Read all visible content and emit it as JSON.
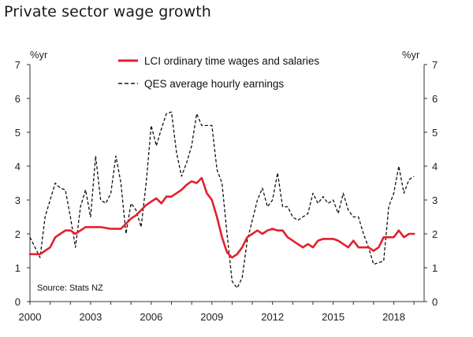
{
  "chart_data": {
    "type": "line",
    "title": "Private sector wage growth",
    "y_unit_left": "%yr",
    "y_unit_right": "%yr",
    "source": "Source: Stats NZ",
    "xlim": [
      2000,
      2019.5
    ],
    "ylim": [
      0,
      7
    ],
    "x_ticks": [
      2000,
      2003,
      2006,
      2009,
      2012,
      2015,
      2018
    ],
    "y_ticks": [
      0,
      1,
      2,
      3,
      4,
      5,
      6,
      7
    ],
    "legend_position": "top-center",
    "grid": false,
    "series": [
      {
        "name": "LCI ordinary time wages and salaries",
        "color": "#e3202d",
        "style": "solid",
        "x": [
          2000.0,
          2000.25,
          2000.5,
          2000.75,
          2001.0,
          2001.25,
          2001.5,
          2001.75,
          2002.0,
          2002.25,
          2002.5,
          2002.75,
          2003.0,
          2003.5,
          2004.0,
          2004.5,
          2004.75,
          2005.0,
          2005.25,
          2005.5,
          2005.75,
          2006.0,
          2006.25,
          2006.5,
          2006.75,
          2007.0,
          2007.25,
          2007.5,
          2007.75,
          2008.0,
          2008.25,
          2008.5,
          2008.75,
          2009.0,
          2009.25,
          2009.5,
          2009.75,
          2010.0,
          2010.25,
          2010.5,
          2010.75,
          2011.0,
          2011.25,
          2011.5,
          2011.75,
          2012.0,
          2012.25,
          2012.5,
          2012.75,
          2013.0,
          2013.25,
          2013.5,
          2013.75,
          2014.0,
          2014.25,
          2014.5,
          2014.75,
          2015.0,
          2015.25,
          2015.5,
          2015.75,
          2016.0,
          2016.25,
          2016.5,
          2016.75,
          2017.0,
          2017.25,
          2017.5,
          2017.75,
          2018.0,
          2018.25,
          2018.5,
          2018.75,
          2019.0
        ],
        "values": [
          1.4,
          1.4,
          1.4,
          1.5,
          1.6,
          1.9,
          2.0,
          2.1,
          2.1,
          2.0,
          2.1,
          2.2,
          2.2,
          2.2,
          2.15,
          2.15,
          2.3,
          2.45,
          2.55,
          2.7,
          2.85,
          2.95,
          3.05,
          2.9,
          3.1,
          3.1,
          3.2,
          3.3,
          3.45,
          3.55,
          3.5,
          3.65,
          3.2,
          3.0,
          2.5,
          1.9,
          1.45,
          1.3,
          1.4,
          1.6,
          1.9,
          2.0,
          2.1,
          2.0,
          2.1,
          2.15,
          2.1,
          2.1,
          1.9,
          1.8,
          1.7,
          1.6,
          1.7,
          1.6,
          1.8,
          1.85,
          1.85,
          1.85,
          1.8,
          1.7,
          1.6,
          1.8,
          1.6,
          1.6,
          1.6,
          1.5,
          1.6,
          1.9,
          1.9,
          1.9,
          2.1,
          1.9,
          2.0,
          2.0
        ]
      },
      {
        "name": "QES average hourly earnings",
        "color": "#111111",
        "style": "dashed",
        "x": [
          2000.0,
          2000.25,
          2000.5,
          2000.75,
          2001.0,
          2001.25,
          2001.5,
          2001.75,
          2002.0,
          2002.25,
          2002.5,
          2002.75,
          2003.0,
          2003.25,
          2003.5,
          2003.75,
          2004.0,
          2004.25,
          2004.5,
          2004.75,
          2005.0,
          2005.25,
          2005.5,
          2005.75,
          2006.0,
          2006.25,
          2006.5,
          2006.75,
          2007.0,
          2007.25,
          2007.5,
          2007.75,
          2008.0,
          2008.25,
          2008.5,
          2008.75,
          2009.0,
          2009.25,
          2009.5,
          2009.75,
          2010.0,
          2010.25,
          2010.5,
          2010.75,
          2011.0,
          2011.25,
          2011.5,
          2011.75,
          2012.0,
          2012.25,
          2012.5,
          2012.75,
          2013.0,
          2013.25,
          2013.5,
          2013.75,
          2014.0,
          2014.25,
          2014.5,
          2014.75,
          2015.0,
          2015.25,
          2015.5,
          2015.75,
          2016.0,
          2016.25,
          2016.5,
          2016.75,
          2017.0,
          2017.25,
          2017.5,
          2017.75,
          2018.0,
          2018.25,
          2018.5,
          2018.75,
          2019.0
        ],
        "values": [
          1.9,
          1.6,
          1.3,
          2.5,
          3.0,
          3.5,
          3.35,
          3.3,
          2.5,
          1.6,
          2.8,
          3.3,
          2.5,
          4.3,
          3.0,
          2.9,
          3.2,
          4.3,
          3.5,
          2.0,
          2.9,
          2.7,
          2.2,
          3.5,
          5.2,
          4.6,
          5.1,
          5.55,
          5.6,
          4.4,
          3.7,
          4.1,
          4.6,
          5.55,
          5.2,
          5.2,
          5.2,
          3.9,
          3.5,
          2.0,
          0.6,
          0.4,
          0.7,
          1.8,
          2.4,
          3.0,
          3.35,
          2.8,
          3.0,
          3.8,
          2.8,
          2.8,
          2.5,
          2.4,
          2.5,
          2.6,
          3.2,
          2.9,
          3.1,
          2.9,
          3.0,
          2.6,
          3.2,
          2.7,
          2.5,
          2.5,
          2.0,
          1.6,
          1.1,
          1.15,
          1.2,
          2.8,
          3.2,
          4.0,
          3.2,
          3.6,
          3.7
        ]
      }
    ]
  }
}
